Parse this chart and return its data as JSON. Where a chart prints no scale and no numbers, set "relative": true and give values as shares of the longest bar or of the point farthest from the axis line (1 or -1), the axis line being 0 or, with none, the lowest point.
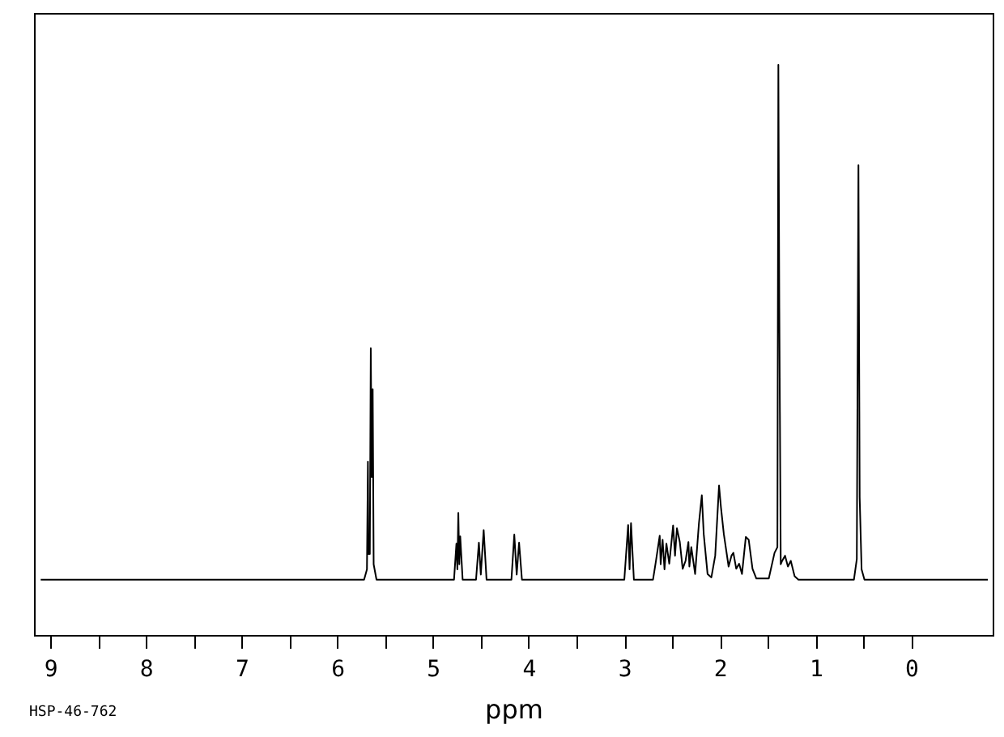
{
  "chart_data": {
    "type": "line",
    "xlabel": "ppm",
    "relative": true,
    "annotations": [
      "HSP-46-762"
    ],
    "xlim": [
      9.17,
      -0.85
    ],
    "xticks": [
      9,
      {
        "value": 8.5,
        "label": null
      },
      8,
      {
        "value": 7.5,
        "label": null
      },
      7,
      {
        "value": 6.5,
        "label": null
      },
      6,
      {
        "value": 5.5,
        "label": null
      },
      5,
      {
        "value": 4.5,
        "label": null
      },
      4,
      {
        "value": 3.5,
        "label": null
      },
      3,
      {
        "value": 2.5,
        "label": null
      },
      2,
      {
        "value": 1.5,
        "label": null
      },
      1,
      {
        "value": 0.5,
        "label": null
      },
      0
    ],
    "series": [
      {
        "color": "#000000",
        "x": [
          9.1,
          5.72,
          5.69,
          5.68,
          5.675,
          5.66,
          5.65,
          5.64,
          5.63,
          5.62,
          5.59,
          4.78,
          4.755,
          4.745,
          4.735,
          4.725,
          4.715,
          4.69,
          4.55,
          4.52,
          4.5,
          4.47,
          4.44,
          4.18,
          4.15,
          4.125,
          4.1,
          4.07,
          3.0,
          2.96,
          2.945,
          2.93,
          2.9,
          2.7,
          2.67,
          2.63,
          2.62,
          2.6,
          2.58,
          2.56,
          2.53,
          2.49,
          2.47,
          2.45,
          2.42,
          2.39,
          2.36,
          2.33,
          2.32,
          2.3,
          2.26,
          2.22,
          2.19,
          2.17,
          2.13,
          2.09,
          2.05,
          2.01,
          1.99,
          1.96,
          1.91,
          1.88,
          1.86,
          1.83,
          1.8,
          1.77,
          1.73,
          1.7,
          1.66,
          1.62,
          1.49,
          1.43,
          1.4,
          1.39,
          1.38,
          1.365,
          1.35,
          1.32,
          1.29,
          1.26,
          1.22,
          1.18,
          0.6,
          0.57,
          0.553,
          0.54,
          0.52,
          0.49,
          -0.8
        ],
        "values": [
          0.097,
          0.097,
          0.115,
          0.304,
          0.142,
          0.142,
          0.503,
          0.277,
          0.431,
          0.124,
          0.097,
          0.097,
          0.16,
          0.115,
          0.214,
          0.124,
          0.173,
          0.097,
          0.097,
          0.162,
          0.106,
          0.184,
          0.097,
          0.097,
          0.176,
          0.106,
          0.162,
          0.097,
          0.097,
          0.193,
          0.115,
          0.196,
          0.097,
          0.097,
          0.129,
          0.174,
          0.124,
          0.167,
          0.115,
          0.16,
          0.125,
          0.192,
          0.139,
          0.187,
          0.163,
          0.116,
          0.13,
          0.163,
          0.12,
          0.154,
          0.107,
          0.196,
          0.245,
          0.177,
          0.107,
          0.101,
          0.139,
          0.262,
          0.224,
          0.177,
          0.12,
          0.139,
          0.144,
          0.116,
          0.125,
          0.107,
          0.172,
          0.167,
          0.116,
          0.099,
          0.099,
          0.144,
          0.154,
          1.0,
          0.575,
          0.124,
          0.13,
          0.139,
          0.12,
          0.13,
          0.103,
          0.097,
          0.097,
          0.133,
          0.824,
          0.241,
          0.115,
          0.097,
          0.097
        ]
      }
    ]
  }
}
